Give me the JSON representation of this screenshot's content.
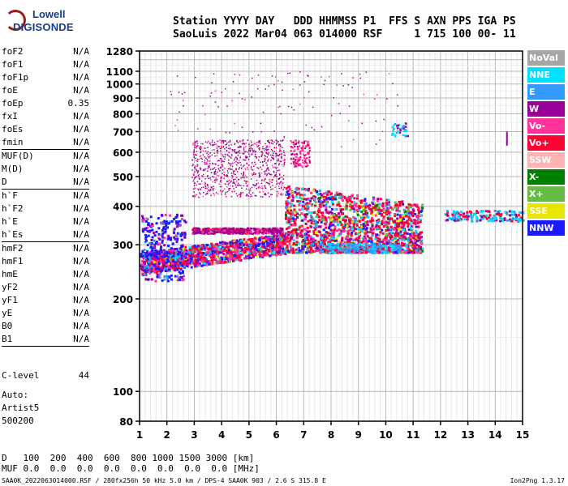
{
  "logo": {
    "line1": "Lowell",
    "line2": "DIGISONDE"
  },
  "header": {
    "labels": "Station YYYY DAY   DDD HHMMSS P1  FFS S AXN PPS IGA PS",
    "values": "SaoLuis 2022 Mar04 063 014000 RSF     1 715 100 00- 11"
  },
  "params": [
    {
      "label": "foF2",
      "value": "N/A"
    },
    {
      "label": "foF1",
      "value": "N/A"
    },
    {
      "label": "foF1p",
      "value": "N/A"
    },
    {
      "label": "foE",
      "value": "N/A"
    },
    {
      "label": "foEp",
      "value": "0.35"
    },
    {
      "label": "fxI",
      "value": "N/A"
    },
    {
      "label": "foEs",
      "value": "N/A"
    },
    {
      "label": "fmin",
      "value": "N/A",
      "sep": true
    },
    {
      "label": "MUF(D)",
      "value": "N/A"
    },
    {
      "label": "M(D)",
      "value": "N/A"
    },
    {
      "label": "D",
      "value": "N/A",
      "sep": true
    },
    {
      "label": "h`F",
      "value": "N/A"
    },
    {
      "label": "h`F2",
      "value": "N/A"
    },
    {
      "label": "h`E",
      "value": "N/A"
    },
    {
      "label": "h`Es",
      "value": "N/A",
      "sep": true
    },
    {
      "label": "hmF2",
      "value": "N/A"
    },
    {
      "label": "hmF1",
      "value": "N/A"
    },
    {
      "label": "hmE",
      "value": "N/A"
    },
    {
      "label": "yF2",
      "value": "N/A"
    },
    {
      "label": "yF1",
      "value": "N/A"
    },
    {
      "label": "yE",
      "value": "N/A"
    },
    {
      "label": "B0",
      "value": "N/A"
    },
    {
      "label": "B1",
      "value": "N/A",
      "sep": true
    }
  ],
  "clevel": {
    "label": "C-level",
    "value": "44"
  },
  "auto": {
    "line1": "Auto:",
    "line2": "Artist5",
    "line3": "500200"
  },
  "legend": [
    {
      "label": "NoVal",
      "color": "#a6a6a6",
      "text": "#ffffff"
    },
    {
      "label": "NNE",
      "color": "#00e0ff",
      "text": "#ffffff"
    },
    {
      "label": "E",
      "color": "#3399ff",
      "text": "#ffffff"
    },
    {
      "label": "W",
      "color": "#990099",
      "text": "#ffffff"
    },
    {
      "label": "Vo-",
      "color": "#ff3399",
      "text": "#ffffff"
    },
    {
      "label": "Vo+",
      "color": "#ff0033",
      "text": "#ffffff"
    },
    {
      "label": "SSW",
      "color": "#ffb3b3",
      "text": "#ffffff"
    },
    {
      "label": "X-",
      "color": "#008000",
      "text": "#ffffff"
    },
    {
      "label": "X+",
      "color": "#66bb44",
      "text": "#ffffff"
    },
    {
      "label": "SSE",
      "color": "#e6e600",
      "text": "#ffffff"
    },
    {
      "label": "NNW",
      "color": "#1a1aff",
      "text": "#ffffff"
    }
  ],
  "bottom": {
    "d_label": "D",
    "d_values": "   100  200  400  600  800 1000 1500 3000 [km]",
    "muf_label": "MUF",
    "muf_values": " 0.0  0.0  0.0  0.0  0.0  0.0  0.0  0.0 [MHz]",
    "footer": "SAA0K_2022063014000.RSF / 280fx256h 50 kHz 5.0 km / DPS-4 SAA0K 903 / 2.6 S 315.8 E",
    "version": "Ion2Png 1.3.17"
  },
  "chart_data": {
    "type": "scatter",
    "title": "",
    "xlabel": "",
    "ylabel": "",
    "xlim": [
      1,
      15
    ],
    "ylim": [
      80,
      1280
    ],
    "y_scale": "log",
    "x_ticks": [
      1,
      2,
      3,
      4,
      5,
      6,
      7,
      8,
      9,
      10,
      11,
      12,
      13,
      14,
      15
    ],
    "y_ticks": [
      80,
      100,
      200,
      300,
      400,
      500,
      600,
      700,
      800,
      900,
      1000,
      1100,
      1280
    ],
    "y_tick_labels": [
      "80",
      "100",
      "200",
      "300",
      "400",
      "500",
      "600",
      "700",
      "800",
      "900",
      "1000",
      "1100",
      "1280"
    ],
    "grid": true,
    "legend_position": "right",
    "echo_regions": [
      {
        "name": "F trace low",
        "x": [
          1.0,
          6.2
        ],
        "y": [
          230,
          300
        ],
        "dominant": "Vo+"
      },
      {
        "name": "F trace upper band",
        "x": [
          2.9,
          6.0
        ],
        "y": [
          310,
          345
        ],
        "dominant": "W"
      },
      {
        "name": "F scatter 7-11 MHz",
        "x": [
          6.2,
          11.5
        ],
        "y": [
          280,
          480
        ],
        "dominant": "Vo+"
      },
      {
        "name": "high-frequency echoes",
        "x": [
          12.1,
          15.0
        ],
        "y": [
          360,
          390
        ],
        "dominant": "NNE"
      },
      {
        "name": "upper scatter",
        "x": [
          2.9,
          7.2
        ],
        "y": [
          520,
          660
        ],
        "dominant": "W"
      },
      {
        "name": "isolated spur",
        "x": [
          14.4,
          14.45
        ],
        "y": [
          630,
          700
        ],
        "dominant": "W"
      },
      {
        "name": "echoes near 10.5 MHz",
        "x": [
          10.2,
          10.8
        ],
        "y": [
          680,
          750
        ],
        "dominant": "NNE"
      }
    ]
  }
}
